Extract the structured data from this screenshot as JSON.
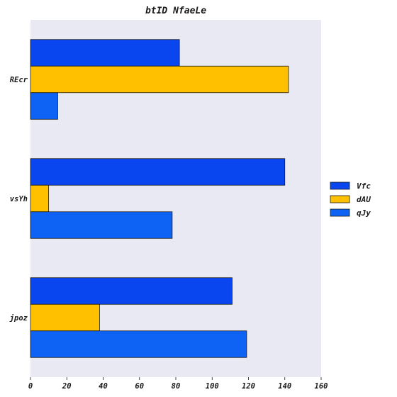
{
  "chart_data": {
    "type": "bar",
    "orientation": "horizontal",
    "title": "btID  NfaeLe",
    "xlabel": "",
    "ylabel": "",
    "categories": [
      "REcr",
      "vsYh",
      "jpoz"
    ],
    "series": [
      {
        "name": "Vfc",
        "values": [
          82,
          140,
          111
        ],
        "color": "#0a46f0"
      },
      {
        "name": "dAU",
        "values": [
          142,
          10,
          38
        ],
        "color": "#ffc000"
      },
      {
        "name": "qJy",
        "values": [
          15,
          78,
          119
        ],
        "color": "#0e63f5"
      }
    ],
    "xlim": [
      0,
      160
    ],
    "xticks": [
      0,
      20,
      40,
      60,
      80,
      100,
      120,
      140,
      160
    ],
    "grid": false,
    "legend_position": "right",
    "plot_background": "#e9e9f4"
  }
}
